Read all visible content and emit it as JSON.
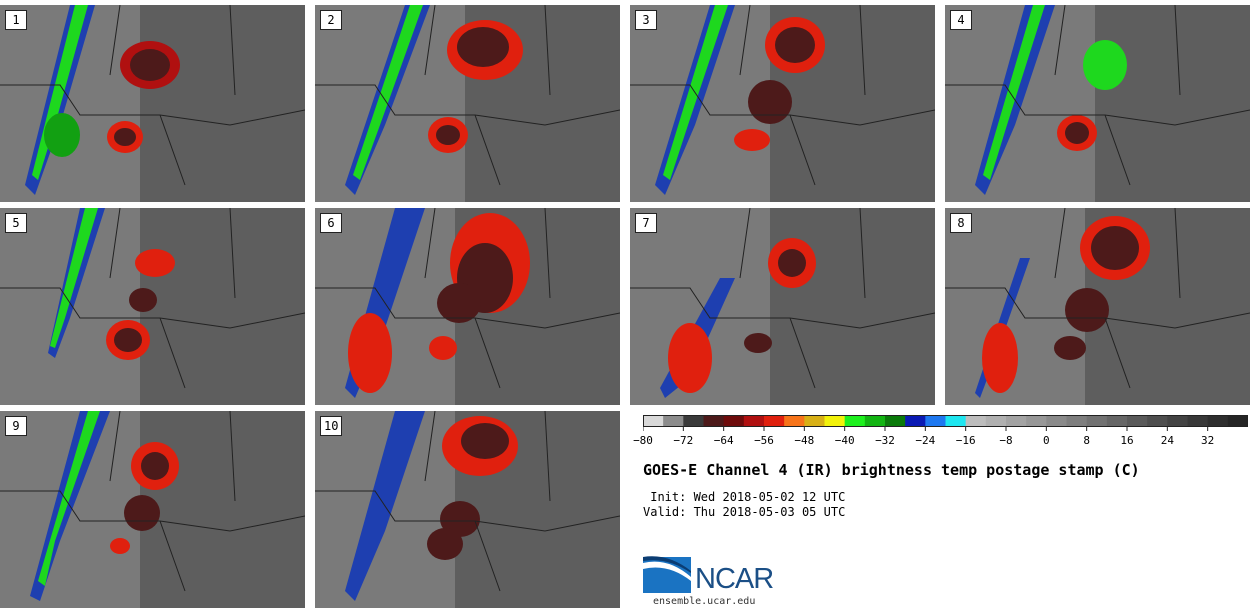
{
  "panels": [
    {
      "label": "1"
    },
    {
      "label": "2"
    },
    {
      "label": "3"
    },
    {
      "label": "4"
    },
    {
      "label": "5"
    },
    {
      "label": "6"
    },
    {
      "label": "7"
    },
    {
      "label": "8"
    },
    {
      "label": "9"
    },
    {
      "label": "10"
    }
  ],
  "colorbar": {
    "ticks": [
      "−80",
      "−72",
      "−64",
      "−56",
      "−48",
      "−40",
      "−32",
      "−24",
      "−16",
      "−8",
      "0",
      "8",
      "16",
      "24",
      "32"
    ],
    "colors": [
      "#d9d9d9",
      "#8c8c8c",
      "#3a3a3a",
      "#4d1a1a",
      "#6e0b0b",
      "#b01010",
      "#e0200e",
      "#f7741a",
      "#d8b016",
      "#f2f20a",
      "#1ef01e",
      "#12b412",
      "#0a7a0a",
      "#0a1ab4",
      "#1e78f0",
      "#1ee6f0",
      "#bdbdbd",
      "#b0b0b0",
      "#a3a3a3",
      "#979797",
      "#8a8a8a",
      "#7e7e7e",
      "#727272",
      "#666666",
      "#5a5a5a",
      "#4e4e4e",
      "#434343",
      "#383838",
      "#2e2e2e",
      "#252525"
    ]
  },
  "title": "GOES-E Channel 4 (IR) brightness temp postage stamp (C)",
  "init_line": " Init: Wed 2018-05-02 12 UTC",
  "valid_line": "Valid: Thu 2018-05-03 05 UTC",
  "logo": {
    "text": "NCAR",
    "url": "ensemble.ucar.edu"
  }
}
